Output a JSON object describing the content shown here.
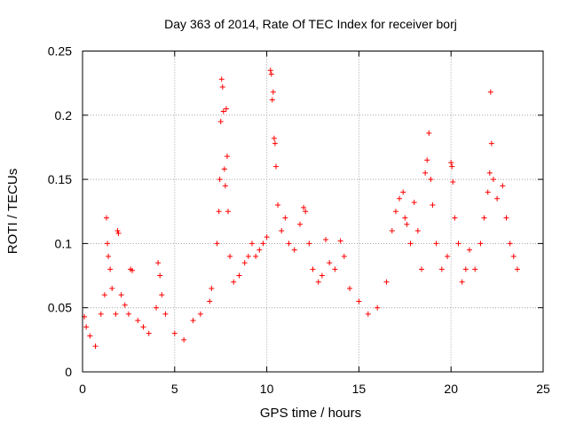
{
  "chart_data": {
    "type": "scatter",
    "title": "Day 363 of 2014, Rate Of TEC Index for receiver borj",
    "xlabel": "GPS time / hours",
    "ylabel": "ROTI / TECUs",
    "xlim": [
      0,
      25
    ],
    "ylim": [
      0,
      0.25
    ],
    "x_ticks": [
      0,
      5,
      10,
      15,
      20,
      25
    ],
    "x_tick_labels": [
      "0",
      "5",
      "10",
      "15",
      "20",
      "25"
    ],
    "y_ticks": [
      0,
      0.05,
      0.1,
      0.15,
      0.2,
      0.25
    ],
    "y_tick_labels": [
      "0",
      "0.05",
      "0.1",
      "0.15",
      "0.2",
      "0.25"
    ],
    "grid": true,
    "marker": "+",
    "color": "#ff0000",
    "series": [
      {
        "name": "ROTI",
        "points": [
          [
            0.1,
            0.043
          ],
          [
            0.2,
            0.035
          ],
          [
            0.4,
            0.028
          ],
          [
            0.7,
            0.02
          ],
          [
            1.0,
            0.045
          ],
          [
            1.2,
            0.06
          ],
          [
            1.3,
            0.12
          ],
          [
            1.35,
            0.1
          ],
          [
            1.4,
            0.09
          ],
          [
            1.5,
            0.08
          ],
          [
            1.6,
            0.065
          ],
          [
            1.8,
            0.045
          ],
          [
            1.9,
            0.11
          ],
          [
            1.95,
            0.108
          ],
          [
            2.1,
            0.06
          ],
          [
            2.3,
            0.052
          ],
          [
            2.5,
            0.045
          ],
          [
            2.6,
            0.08
          ],
          [
            2.7,
            0.079
          ],
          [
            3.0,
            0.04
          ],
          [
            3.3,
            0.035
          ],
          [
            3.6,
            0.03
          ],
          [
            4.0,
            0.05
          ],
          [
            4.1,
            0.085
          ],
          [
            4.2,
            0.075
          ],
          [
            4.3,
            0.06
          ],
          [
            4.5,
            0.045
          ],
          [
            5.0,
            0.03
          ],
          [
            5.5,
            0.025
          ],
          [
            6.0,
            0.04
          ],
          [
            6.4,
            0.045
          ],
          [
            6.9,
            0.055
          ],
          [
            7.0,
            0.065
          ],
          [
            7.3,
            0.1
          ],
          [
            7.4,
            0.125
          ],
          [
            7.45,
            0.15
          ],
          [
            7.5,
            0.195
          ],
          [
            7.55,
            0.228
          ],
          [
            7.6,
            0.222
          ],
          [
            7.65,
            0.203
          ],
          [
            7.7,
            0.158
          ],
          [
            7.75,
            0.145
          ],
          [
            7.8,
            0.205
          ],
          [
            7.85,
            0.168
          ],
          [
            7.9,
            0.125
          ],
          [
            8.0,
            0.09
          ],
          [
            8.2,
            0.07
          ],
          [
            8.5,
            0.075
          ],
          [
            8.8,
            0.085
          ],
          [
            9.0,
            0.09
          ],
          [
            9.2,
            0.1
          ],
          [
            9.4,
            0.09
          ],
          [
            9.6,
            0.095
          ],
          [
            9.8,
            0.1
          ],
          [
            10.0,
            0.105
          ],
          [
            10.2,
            0.235
          ],
          [
            10.25,
            0.232
          ],
          [
            10.3,
            0.212
          ],
          [
            10.35,
            0.218
          ],
          [
            10.4,
            0.182
          ],
          [
            10.45,
            0.178
          ],
          [
            10.5,
            0.16
          ],
          [
            10.6,
            0.13
          ],
          [
            10.8,
            0.11
          ],
          [
            11.0,
            0.12
          ],
          [
            11.2,
            0.1
          ],
          [
            11.5,
            0.095
          ],
          [
            11.8,
            0.115
          ],
          [
            12.0,
            0.128
          ],
          [
            12.1,
            0.125
          ],
          [
            12.3,
            0.1
          ],
          [
            12.5,
            0.08
          ],
          [
            12.8,
            0.07
          ],
          [
            13.0,
            0.075
          ],
          [
            13.2,
            0.103
          ],
          [
            13.4,
            0.085
          ],
          [
            13.7,
            0.08
          ],
          [
            14.0,
            0.102
          ],
          [
            14.2,
            0.09
          ],
          [
            14.5,
            0.065
          ],
          [
            15.0,
            0.055
          ],
          [
            15.5,
            0.045
          ],
          [
            16.0,
            0.05
          ],
          [
            16.5,
            0.07
          ],
          [
            16.8,
            0.11
          ],
          [
            17.0,
            0.125
          ],
          [
            17.2,
            0.135
          ],
          [
            17.4,
            0.14
          ],
          [
            17.5,
            0.12
          ],
          [
            17.6,
            0.115
          ],
          [
            17.8,
            0.1
          ],
          [
            18.0,
            0.132
          ],
          [
            18.2,
            0.11
          ],
          [
            18.4,
            0.08
          ],
          [
            18.6,
            0.155
          ],
          [
            18.7,
            0.165
          ],
          [
            18.8,
            0.186
          ],
          [
            18.9,
            0.15
          ],
          [
            19.0,
            0.13
          ],
          [
            19.2,
            0.1
          ],
          [
            19.5,
            0.08
          ],
          [
            19.8,
            0.09
          ],
          [
            20.0,
            0.163
          ],
          [
            20.05,
            0.16
          ],
          [
            20.1,
            0.148
          ],
          [
            20.2,
            0.12
          ],
          [
            20.4,
            0.1
          ],
          [
            20.6,
            0.07
          ],
          [
            20.8,
            0.08
          ],
          [
            21.0,
            0.095
          ],
          [
            21.3,
            0.08
          ],
          [
            21.6,
            0.1
          ],
          [
            21.8,
            0.12
          ],
          [
            22.0,
            0.14
          ],
          [
            22.1,
            0.155
          ],
          [
            22.15,
            0.218
          ],
          [
            22.2,
            0.178
          ],
          [
            22.3,
            0.15
          ],
          [
            22.5,
            0.135
          ],
          [
            22.8,
            0.145
          ],
          [
            23.0,
            0.12
          ],
          [
            23.2,
            0.1
          ],
          [
            23.4,
            0.09
          ],
          [
            23.6,
            0.08
          ]
        ]
      }
    ]
  }
}
